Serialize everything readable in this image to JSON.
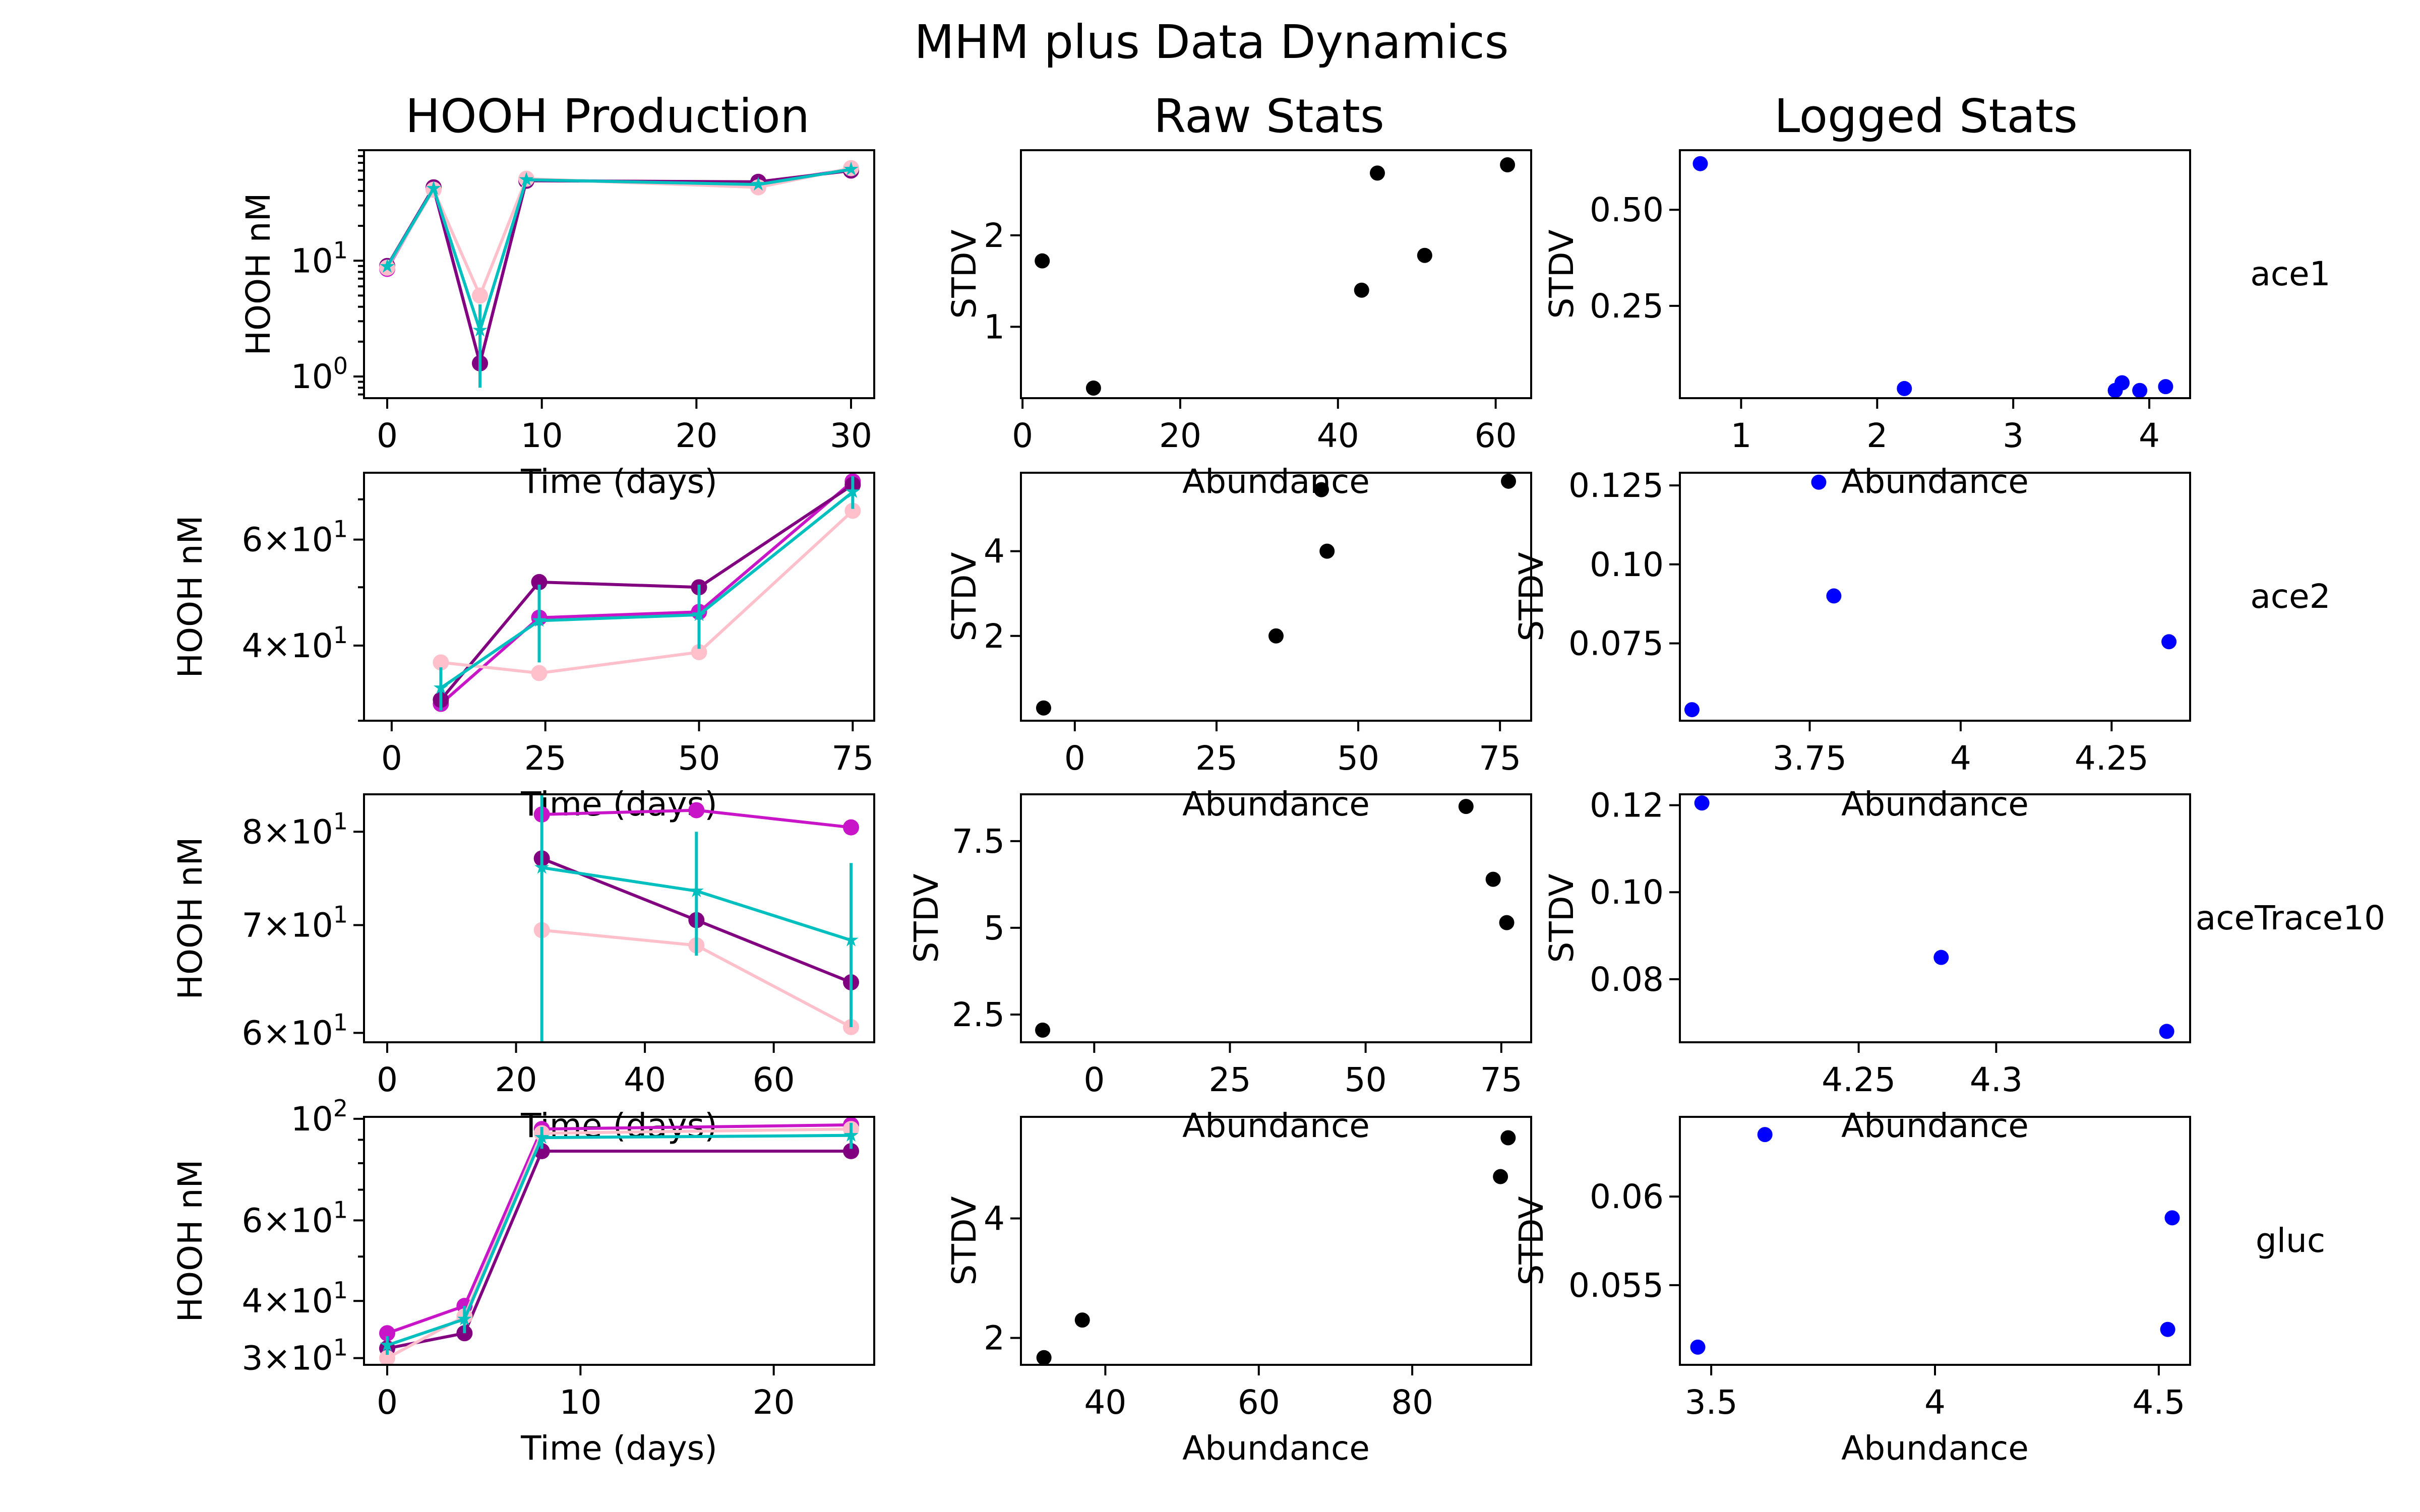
{
  "figure": {
    "title": "MHM plus Data Dynamics",
    "column_titles": [
      "HOOH Production",
      "Raw Stats",
      "Logged Stats"
    ]
  },
  "colors": {
    "rep1": "#c715c7",
    "rep2": "#800080",
    "rep3": "#ffc0cb",
    "avg": "#00bfbf",
    "raw_points": "#000000",
    "log_points": "#0000ff"
  },
  "chart_data": [
    {
      "type": "line",
      "row": 0,
      "col": 0,
      "row_label": "ace1",
      "title": "HOOH Production",
      "xlabel": "Time (days)",
      "ylabel": "HOOH nM",
      "yscale": "log",
      "xlim": [
        -1.5,
        31.5
      ],
      "ylim": [
        0.65,
        90
      ],
      "xticks": [
        0,
        10,
        20,
        30
      ],
      "yticks": [
        {
          "v": 1,
          "base": "10",
          "exp": "0"
        },
        {
          "v": 10,
          "base": "10",
          "exp": "1"
        }
      ],
      "x": [
        0,
        3,
        6,
        9,
        24,
        30
      ],
      "series": [
        {
          "name": "rep1",
          "values": [
            8.5,
            42,
            1.3,
            50,
            46,
            62
          ]
        },
        {
          "name": "rep2",
          "values": [
            9.0,
            43,
            1.3,
            49,
            48,
            60
          ]
        },
        {
          "name": "rep3",
          "values": [
            8.7,
            41,
            5.0,
            51,
            43,
            63
          ]
        },
        {
          "name": "avg",
          "values": [
            8.9,
            42,
            2.5,
            50,
            45.5,
            61.5
          ],
          "err": [
            0.3,
            1.4,
            1.7,
            1.8,
            2.7,
            1.4
          ]
        }
      ]
    },
    {
      "type": "scatter",
      "row": 0,
      "col": 1,
      "title": "Raw Stats",
      "xlabel": "Abundance",
      "ylabel": "STDV",
      "xlim": [
        -0.2,
        64.5
      ],
      "ylim": [
        0.22,
        2.93
      ],
      "xticks": [
        0,
        20,
        40,
        60
      ],
      "yticks": [
        1,
        2
      ],
      "points": [
        [
          2.5,
          1.72
        ],
        [
          9,
          0.33
        ],
        [
          43,
          1.4
        ],
        [
          45,
          2.68
        ],
        [
          51,
          1.78
        ],
        [
          61.5,
          2.77
        ]
      ]
    },
    {
      "type": "scatter",
      "row": 0,
      "col": 2,
      "title": "Logged Stats",
      "xlabel": "Abundance",
      "ylabel": "STDV",
      "xlim": [
        0.55,
        4.3
      ],
      "ylim": [
        0.01,
        0.655
      ],
      "xticks": [
        1,
        2,
        3,
        4
      ],
      "yticks": [
        0.25,
        0.5
      ],
      "points": [
        [
          0.7,
          0.62
        ],
        [
          2.2,
          0.035
        ],
        [
          3.75,
          0.03
        ],
        [
          3.8,
          0.05
        ],
        [
          3.93,
          0.03
        ],
        [
          4.12,
          0.04
        ]
      ]
    },
    {
      "type": "line",
      "row": 1,
      "col": 0,
      "row_label": "ace2",
      "xlabel": "Time (days)",
      "ylabel": "HOOH nM",
      "yscale": "log",
      "xlim": [
        -4.5,
        78.5
      ],
      "ylim": [
        30,
        77.5
      ],
      "xticks": [
        0,
        25,
        50,
        75
      ],
      "yticks": [
        {
          "v": 40,
          "base": "4×10",
          "exp": "1"
        },
        {
          "v": 60,
          "base": "6×10",
          "exp": "1"
        }
      ],
      "x": [
        8,
        24,
        50,
        75
      ],
      "series": [
        {
          "name": "rep1",
          "values": [
            32,
            44.5,
            45.5,
            75
          ]
        },
        {
          "name": "rep2",
          "values": [
            32.5,
            51,
            50,
            74
          ]
        },
        {
          "name": "rep3",
          "values": [
            37.5,
            36,
            39,
            67
          ]
        },
        {
          "name": "avg",
          "values": [
            34,
            44,
            45,
            72
          ],
          "err": [
            2.8,
            6.5,
            5.5,
            4.5
          ]
        }
      ]
    },
    {
      "type": "scatter",
      "row": 1,
      "col": 1,
      "xlabel": "Abundance",
      "ylabel": "STDV",
      "xlim": [
        -9.5,
        80.5
      ],
      "ylim": [
        0.0,
        5.85
      ],
      "xticks": [
        0,
        25,
        50,
        75
      ],
      "yticks": [
        2,
        4
      ],
      "points": [
        [
          -5.5,
          0.3
        ],
        [
          35.5,
          2.0
        ],
        [
          43.5,
          5.45
        ],
        [
          44.5,
          4.0
        ],
        [
          76.5,
          5.65
        ]
      ]
    },
    {
      "type": "scatter",
      "row": 1,
      "col": 2,
      "xlabel": "Abundance",
      "ylabel": "STDV",
      "xlim": [
        3.535,
        4.38
      ],
      "ylim": [
        0.0505,
        0.129
      ],
      "xticks": [
        3.75,
        4.0,
        4.25
      ],
      "yticks": [
        0.075,
        0.1,
        0.125
      ],
      "points": [
        [
          3.555,
          0.054
        ],
        [
          3.765,
          0.126
        ],
        [
          3.79,
          0.09
        ],
        [
          4.345,
          0.0755
        ]
      ]
    },
    {
      "type": "line",
      "row": 2,
      "col": 0,
      "row_label": "aceTrace10",
      "xlabel": "Time (days)",
      "ylabel": "HOOH nM",
      "yscale": "log",
      "xlim": [
        -3.6,
        75.6
      ],
      "ylim": [
        59.2,
        84.4
      ],
      "xticks": [
        0,
        20,
        40,
        60
      ],
      "yticks": [
        {
          "v": 60,
          "base": "6×10",
          "exp": "1"
        },
        {
          "v": 70,
          "base": "7×10",
          "exp": "1"
        },
        {
          "v": 80,
          "base": "8×10",
          "exp": "1"
        }
      ],
      "x": [
        24,
        48,
        72
      ],
      "series": [
        {
          "name": "rep1",
          "values": [
            82,
            82.5,
            80.5
          ]
        },
        {
          "name": "rep2",
          "values": [
            77,
            70.5,
            64.5
          ]
        },
        {
          "name": "rep3",
          "values": [
            69.5,
            68,
            60.5
          ]
        },
        {
          "name": "avg",
          "values": [
            76,
            73.5,
            68.5
          ],
          "err": [
            20,
            6.5,
            8
          ]
        }
      ]
    },
    {
      "type": "scatter",
      "row": 2,
      "col": 1,
      "xlabel": "Abundance",
      "ylabel": "STDV",
      "xlim": [
        -13.5,
        80.5
      ],
      "ylim": [
        1.7,
        8.85
      ],
      "xticks": [
        0,
        25,
        50,
        75
      ],
      "yticks": [
        2.5,
        5.0,
        7.5
      ],
      "points": [
        [
          -9.5,
          2.05
        ],
        [
          68.5,
          8.5
        ],
        [
          73.5,
          6.4
        ],
        [
          76,
          5.15
        ]
      ]
    },
    {
      "type": "scatter",
      "row": 2,
      "col": 2,
      "xlabel": "Abundance",
      "ylabel": "STDV",
      "xlim": [
        4.185,
        4.3705
      ],
      "ylim": [
        0.0655,
        0.1225
      ],
      "xticks": [
        4.25,
        4.3
      ],
      "yticks": [
        0.08,
        0.1,
        0.12
      ],
      "points": [
        [
          4.193,
          0.1205
        ],
        [
          4.28,
          0.085
        ],
        [
          4.362,
          0.068
        ]
      ]
    },
    {
      "type": "line",
      "row": 3,
      "col": 0,
      "row_label": "gluc",
      "xlabel": "Time (days)",
      "ylabel": "HOOH nM",
      "yscale": "log",
      "xlim": [
        -1.2,
        25.2
      ],
      "ylim": [
        29,
        101
      ],
      "xticks": [
        0,
        10,
        20
      ],
      "yticks": [
        {
          "v": 30,
          "base": "3×10",
          "exp": "1"
        },
        {
          "v": 40,
          "base": "4×10",
          "exp": "1"
        },
        {
          "v": 60,
          "base": "6×10",
          "exp": "1"
        },
        {
          "v": 100,
          "base": "10",
          "exp": "2"
        }
      ],
      "x": [
        0,
        4,
        8,
        24
      ],
      "series": [
        {
          "name": "rep1",
          "values": [
            34,
            39,
            95,
            97
          ]
        },
        {
          "name": "rep2",
          "values": [
            31.5,
            34,
            85,
            85
          ]
        },
        {
          "name": "rep3",
          "values": [
            30,
            37,
            93,
            95
          ]
        },
        {
          "name": "avg",
          "values": [
            32,
            36.5,
            91,
            92
          ],
          "err": [
            1.5,
            2.5,
            5,
            6
          ]
        }
      ]
    },
    {
      "type": "scatter",
      "row": 3,
      "col": 1,
      "xlabel": "Abundance",
      "ylabel": "STDV",
      "xlim": [
        29,
        95.5
      ],
      "ylim": [
        1.55,
        5.7
      ],
      "xticks": [
        40,
        60,
        80
      ],
      "yticks": [
        2,
        4
      ],
      "points": [
        [
          32,
          1.67
        ],
        [
          37,
          2.3
        ],
        [
          91.5,
          4.7
        ],
        [
          92.5,
          5.35
        ]
      ]
    },
    {
      "type": "scatter",
      "row": 3,
      "col": 2,
      "xlabel": "Abundance",
      "ylabel": "STDV",
      "xlim": [
        3.43,
        4.57
      ],
      "ylim": [
        0.0505,
        0.0645
      ],
      "xticks": [
        3.5,
        4.0,
        4.5
      ],
      "yticks": [
        0.055,
        0.06
      ],
      "points": [
        [
          3.47,
          0.0515
        ],
        [
          3.62,
          0.0635
        ],
        [
          4.53,
          0.0588
        ],
        [
          4.52,
          0.0525
        ]
      ]
    }
  ]
}
